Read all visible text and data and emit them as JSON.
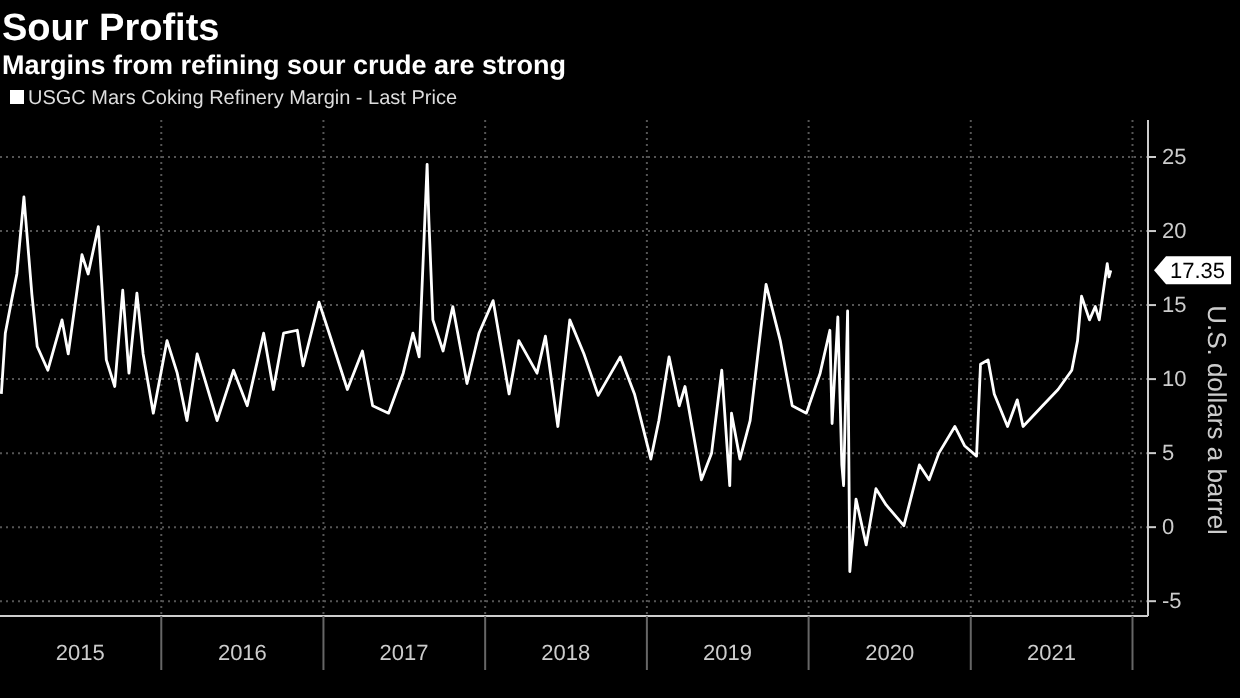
{
  "chart_data": {
    "type": "line",
    "title": "Sour Profits",
    "subtitle": "Margins from refining sour crude are strong",
    "ylabel": "U.S. dollars a barrel",
    "legend": "top left",
    "grid": true,
    "line_style": "solid",
    "marker": "none",
    "xlim": [
      "2015-01-02",
      "2022-02-05"
    ],
    "ylim": [
      -6,
      27.5
    ],
    "yticks": [
      -5,
      0,
      5,
      10,
      15,
      20,
      25
    ],
    "xticks": [
      {
        "value": "2015-07-02",
        "label": "2015"
      },
      {
        "value": "2016-01-01",
        "label": null
      },
      {
        "value": "2016-07-02",
        "label": "2016"
      },
      {
        "value": "2017-01-01",
        "label": null
      },
      {
        "value": "2017-07-02",
        "label": "2017"
      },
      {
        "value": "2018-01-01",
        "label": null
      },
      {
        "value": "2018-07-02",
        "label": "2018"
      },
      {
        "value": "2019-01-01",
        "label": null
      },
      {
        "value": "2019-07-02",
        "label": "2019"
      },
      {
        "value": "2020-01-01",
        "label": null
      },
      {
        "value": "2020-07-02",
        "label": "2020"
      },
      {
        "value": "2021-01-01",
        "label": null
      },
      {
        "value": "2021-07-02",
        "label": "2021"
      },
      {
        "value": "2022-01-01",
        "label": null
      }
    ],
    "annotations": [
      {
        "text": "17.35",
        "x": "2021-11-13",
        "y": 17.35
      }
    ],
    "series": [
      {
        "name": "USGC Mars Coking Refinery Margin - Last Price",
        "color": "#ffffff",
        "x": [
          "2015-01-05",
          "2015-01-14",
          "2015-01-28",
          "2015-02-09",
          "2015-02-25",
          "2015-03-15",
          "2015-03-27",
          "2015-04-20",
          "2015-05-22",
          "2015-06-05",
          "2015-07-06",
          "2015-07-20",
          "2015-08-12",
          "2015-08-30",
          "2015-09-18",
          "2015-10-06",
          "2015-10-20",
          "2015-11-07",
          "2015-11-21",
          "2015-12-14",
          "2016-01-14",
          "2016-02-06",
          "2016-02-28",
          "2016-03-22",
          "2016-05-06",
          "2016-06-12",
          "2016-07-13",
          "2016-08-19",
          "2016-09-10",
          "2016-10-03",
          "2016-11-03",
          "2016-11-16",
          "2016-12-22",
          "2017-01-14",
          "2017-02-24",
          "2017-03-30",
          "2017-04-22",
          "2017-05-28",
          "2017-06-30",
          "2017-07-22",
          "2017-08-05",
          "2017-08-23",
          "2017-08-27",
          "2017-09-05",
          "2017-09-28",
          "2017-10-20",
          "2017-11-21",
          "2017-12-18",
          "2018-01-19",
          "2018-02-24",
          "2018-03-18",
          "2018-04-28",
          "2018-05-17",
          "2018-06-14",
          "2018-07-11",
          "2018-08-12",
          "2018-09-13",
          "2018-11-02",
          "2018-12-04",
          "2019-01-10",
          "2019-01-28",
          "2019-02-20",
          "2019-03-15",
          "2019-03-28",
          "2019-05-04",
          "2019-05-27",
          "2019-06-19",
          "2019-07-07",
          "2019-07-11",
          "2019-07-30",
          "2019-08-22",
          "2019-09-27",
          "2019-10-29",
          "2019-11-25",
          "2019-12-27",
          "2020-01-27",
          "2020-02-18",
          "2020-02-23",
          "2020-03-07",
          "2020-03-16",
          "2020-03-20",
          "2020-03-29",
          "2020-04-03",
          "2020-04-17",
          "2020-05-10",
          "2020-06-01",
          "2020-06-24",
          "2020-08-03",
          "2020-09-07",
          "2020-09-29",
          "2020-10-21",
          "2020-11-26",
          "2020-12-18",
          "2021-01-14",
          "2021-01-23",
          "2021-02-09",
          "2021-02-23",
          "2021-03-25",
          "2021-04-16",
          "2021-04-29",
          "2021-06-12",
          "2021-07-17",
          "2021-08-17",
          "2021-08-30",
          "2021-09-08",
          "2021-09-26",
          "2021-10-09",
          "2021-10-18",
          "2021-11-05",
          "2021-11-09",
          "2021-11-13"
        ],
        "values": [
          9.0,
          13.1,
          15.3,
          17.1,
          22.3,
          15.7,
          12.2,
          10.6,
          14.0,
          11.7,
          18.4,
          17.1,
          20.3,
          11.3,
          9.5,
          16.0,
          10.4,
          15.8,
          11.7,
          7.7,
          12.6,
          10.4,
          7.2,
          11.7,
          7.2,
          10.6,
          8.2,
          13.1,
          9.3,
          13.1,
          13.3,
          10.9,
          15.2,
          13.1,
          9.3,
          11.9,
          8.2,
          7.7,
          10.4,
          13.1,
          11.5,
          24.5,
          20.7,
          14.0,
          11.9,
          14.9,
          9.7,
          13.1,
          15.3,
          9.0,
          12.6,
          10.4,
          12.9,
          6.8,
          14.0,
          11.7,
          8.9,
          11.5,
          9.0,
          4.6,
          7.2,
          11.5,
          8.2,
          9.5,
          3.2,
          5.0,
          10.6,
          2.8,
          7.7,
          4.6,
          7.2,
          16.4,
          12.6,
          8.2,
          7.7,
          10.4,
          13.3,
          7.0,
          14.2,
          4.2,
          2.8,
          14.6,
          -3.0,
          1.9,
          -1.2,
          2.6,
          1.5,
          0.1,
          4.2,
          3.2,
          5.0,
          6.8,
          5.5,
          4.8,
          11.0,
          11.3,
          9.0,
          6.8,
          8.6,
          6.8,
          8.2,
          9.3,
          10.6,
          12.6,
          15.6,
          14.0,
          14.9,
          14.0,
          17.8,
          16.9,
          17.35
        ]
      }
    ]
  }
}
